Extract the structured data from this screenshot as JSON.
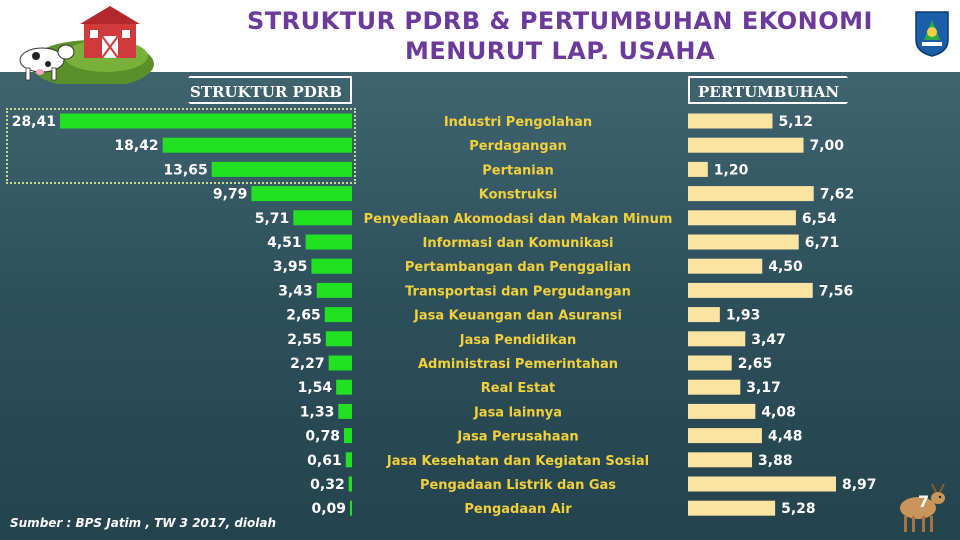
{
  "header": {
    "title_line1": "STRUKTUR PDRB & PERTUMBUHAN EKONOMI",
    "title_line2": "MENURUT LAP. USAHA"
  },
  "tags": {
    "left": "STRUKTUR PDRB",
    "right": "PERTUMBUHAN"
  },
  "footer": {
    "source": "Sumber : BPS Jatim , TW 3 2017, diolah",
    "page_number": "7"
  },
  "colors": {
    "structure_bar": "#22e022",
    "growth_bar": "#fbe3a2",
    "category_text": "#f2d03a",
    "title": "#6b3a9a"
  },
  "chart_data": {
    "type": "bar",
    "categories": [
      "Industri Pengolahan",
      "Perdagangan",
      "Pertanian",
      "Konstruksi",
      "Penyediaan Akomodasi dan Makan Minum",
      "Informasi dan Komunikasi",
      "Pertambangan dan Penggalian",
      "Transportasi dan Pergudangan",
      "Jasa Keuangan dan Asuransi",
      "Jasa Pendidikan",
      "Administrasi Pemerintahan",
      "Real Estat",
      "Jasa lainnya",
      "Jasa Perusahaan",
      "Jasa Kesehatan dan Kegiatan Sosial",
      "Pengadaan Listrik dan Gas",
      "Pengadaan Air"
    ],
    "series": [
      {
        "name": "STRUKTUR PDRB",
        "values": [
          28.41,
          18.42,
          13.65,
          9.79,
          5.71,
          4.51,
          3.95,
          3.43,
          2.65,
          2.55,
          2.27,
          1.54,
          1.33,
          0.78,
          0.61,
          0.32,
          0.09
        ],
        "labels": [
          "28,41",
          "18,42",
          "13,65",
          "9,79",
          "5,71",
          "4,51",
          "3,95",
          "3,43",
          "2,65",
          "2,55",
          "2,27",
          "1,54",
          "1,33",
          "0,78",
          "0,61",
          "0,32",
          "0,09"
        ]
      },
      {
        "name": "PERTUMBUHAN",
        "values": [
          5.12,
          7.0,
          1.2,
          7.62,
          6.54,
          6.71,
          4.5,
          7.56,
          1.93,
          3.47,
          2.65,
          3.17,
          4.08,
          4.48,
          3.88,
          8.97,
          5.28
        ],
        "labels": [
          "5,12",
          "7,00",
          "1,20",
          "7,62",
          "6,54",
          "6,71",
          "4,50",
          "7,56",
          "1,93",
          "3,47",
          "2,65",
          "3,17",
          "4,08",
          "4,48",
          "3,88",
          "8,97",
          "5,28"
        ]
      }
    ],
    "title": "",
    "xlabel": "",
    "ylabel": ""
  }
}
